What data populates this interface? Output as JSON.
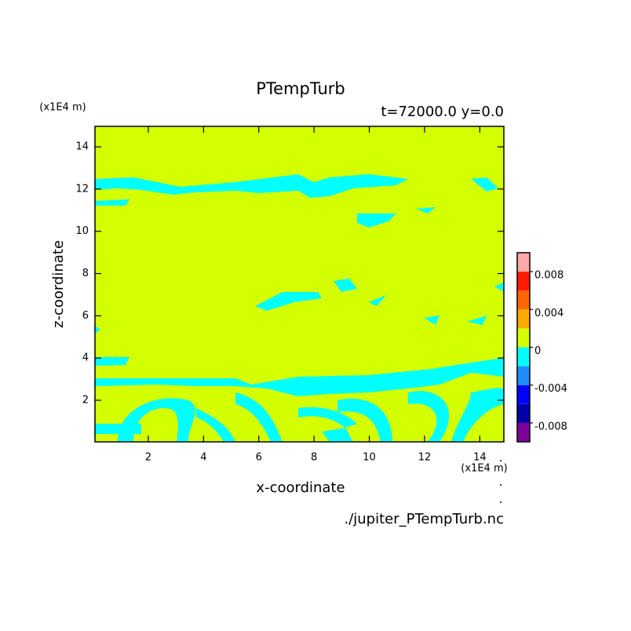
{
  "chart_data": {
    "type": "contour",
    "title": "PTempTurb",
    "subtitle": "t=72000.0 y=0.0",
    "x_label": "x-coordinate",
    "y_label": "z-coordinate",
    "x_unit": "(x1E4 m)",
    "y_unit": "(x1E4 m)",
    "source": "./jupiter_PTempTurb.nc",
    "xlim": [
      0.07,
      14.87
    ],
    "ylim": [
      0.03,
      14.97
    ],
    "xticks": [
      2,
      4,
      6,
      8,
      10,
      12,
      14
    ],
    "yticks": [
      2,
      4,
      6,
      8,
      10,
      12,
      14
    ],
    "colorbar": {
      "levels": [
        -0.01,
        -0.008,
        -0.006,
        -0.004,
        -0.002,
        0,
        0.002,
        0.004,
        0.006,
        0.008,
        0.01
      ],
      "colors": [
        "#7f0099",
        "#0000a8",
        "#0000ff",
        "#1e8cff",
        "#00ffff",
        "#d4ff00",
        "#ffaa00",
        "#ff6600",
        "#ff1a00",
        "#ffaaaa"
      ],
      "ticks": [
        -0.008,
        -0.004,
        0,
        0.004,
        0.008
      ]
    }
  }
}
